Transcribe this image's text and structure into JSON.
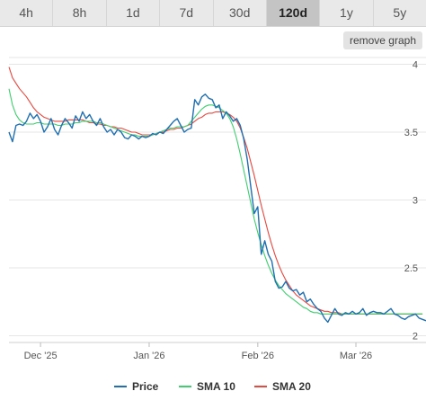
{
  "range_buttons": [
    {
      "label": "4h"
    },
    {
      "label": "8h"
    },
    {
      "label": "1d"
    },
    {
      "label": "7d"
    },
    {
      "label": "30d"
    },
    {
      "label": "120d",
      "active": true
    },
    {
      "label": "1y"
    },
    {
      "label": "5y"
    }
  ],
  "remove_graph_label": "remove graph",
  "colors": {
    "price": "#1f6fb2",
    "sma10": "#3fcf6f",
    "sma20": "#e8483f",
    "grid": "#e6e6e6"
  },
  "chart_data": {
    "type": "line",
    "x_ticks": [
      {
        "label": "Dec '25",
        "x": 5
      },
      {
        "label": "Jan '26",
        "x": 36
      },
      {
        "label": "Feb '26",
        "x": 67
      },
      {
        "label": "Mar '26",
        "x": 95
      }
    ],
    "xlim": [
      -4,
      115
    ],
    "y_ticks": [
      "2",
      "2.5",
      "3",
      "3.5",
      "4"
    ],
    "ylim": [
      1.95,
      4.05
    ],
    "series": [
      {
        "name": "Price",
        "key": "price",
        "x_start": -4,
        "values": [
          3.5,
          3.43,
          3.55,
          3.56,
          3.55,
          3.58,
          3.64,
          3.6,
          3.63,
          3.58,
          3.5,
          3.54,
          3.6,
          3.52,
          3.48,
          3.55,
          3.6,
          3.57,
          3.53,
          3.62,
          3.58,
          3.65,
          3.6,
          3.63,
          3.58,
          3.55,
          3.6,
          3.54,
          3.5,
          3.52,
          3.48,
          3.52,
          3.5,
          3.46,
          3.45,
          3.48,
          3.47,
          3.45,
          3.47,
          3.46,
          3.47,
          3.49,
          3.48,
          3.5,
          3.49,
          3.52,
          3.55,
          3.58,
          3.6,
          3.55,
          3.5,
          3.52,
          3.53,
          3.74,
          3.7,
          3.76,
          3.78,
          3.75,
          3.74,
          3.68,
          3.7,
          3.6,
          3.65,
          3.62,
          3.58,
          3.6,
          3.55,
          3.45,
          3.3,
          3.1,
          2.9,
          2.95,
          2.6,
          2.7,
          2.6,
          2.55,
          2.4,
          2.35,
          2.36,
          2.4,
          2.35,
          2.33,
          2.34,
          2.3,
          2.32,
          2.25,
          2.27,
          2.23,
          2.2,
          2.18,
          2.13,
          2.1,
          2.15,
          2.2,
          2.16,
          2.15,
          2.17,
          2.16,
          2.18,
          2.16,
          2.17,
          2.2,
          2.15,
          2.17,
          2.18,
          2.17,
          2.17,
          2.16,
          2.18,
          2.2,
          2.16,
          2.15,
          2.13,
          2.12,
          2.14,
          2.15,
          2.16,
          2.13,
          2.12,
          2.11
        ]
      },
      {
        "name": "SMA 10",
        "key": "sma10",
        "x_start": -4,
        "values": [
          3.82,
          3.7,
          3.63,
          3.59,
          3.57,
          3.56,
          3.56,
          3.56,
          3.57,
          3.57,
          3.56,
          3.56,
          3.56,
          3.56,
          3.55,
          3.55,
          3.56,
          3.56,
          3.56,
          3.57,
          3.57,
          3.58,
          3.58,
          3.58,
          3.58,
          3.57,
          3.57,
          3.56,
          3.55,
          3.54,
          3.53,
          3.52,
          3.51,
          3.5,
          3.49,
          3.48,
          3.48,
          3.47,
          3.47,
          3.47,
          3.47,
          3.48,
          3.49,
          3.5,
          3.51,
          3.52,
          3.53,
          3.53,
          3.54,
          3.54,
          3.54,
          3.55,
          3.58,
          3.61,
          3.64,
          3.67,
          3.69,
          3.7,
          3.7,
          3.69,
          3.68,
          3.66,
          3.64,
          3.6,
          3.54,
          3.45,
          3.34,
          3.22,
          3.1,
          2.98,
          2.86,
          2.76,
          2.67,
          2.59,
          2.52,
          2.46,
          2.41,
          2.37,
          2.34,
          2.31,
          2.29,
          2.27,
          2.25,
          2.23,
          2.21,
          2.2,
          2.18,
          2.17,
          2.17,
          2.16,
          2.16,
          2.16,
          2.16,
          2.16,
          2.16,
          2.16,
          2.16,
          2.16,
          2.16,
          2.16,
          2.16,
          2.16,
          2.16,
          2.16,
          2.16,
          2.16,
          2.16,
          2.16,
          2.16,
          2.16,
          2.16,
          2.16,
          2.16,
          2.16,
          2.16,
          2.16,
          2.16,
          2.16,
          2.16
        ]
      },
      {
        "name": "SMA 20",
        "key": "sma20",
        "x_start": -4,
        "values": [
          3.98,
          3.9,
          3.86,
          3.82,
          3.79,
          3.76,
          3.72,
          3.68,
          3.65,
          3.63,
          3.61,
          3.6,
          3.59,
          3.58,
          3.58,
          3.58,
          3.58,
          3.59,
          3.59,
          3.59,
          3.59,
          3.59,
          3.58,
          3.57,
          3.57,
          3.56,
          3.56,
          3.55,
          3.55,
          3.54,
          3.54,
          3.53,
          3.53,
          3.52,
          3.51,
          3.5,
          3.5,
          3.49,
          3.48,
          3.48,
          3.48,
          3.48,
          3.49,
          3.5,
          3.5,
          3.51,
          3.52,
          3.52,
          3.53,
          3.53,
          3.54,
          3.55,
          3.56,
          3.58,
          3.6,
          3.61,
          3.63,
          3.64,
          3.64,
          3.65,
          3.65,
          3.65,
          3.64,
          3.63,
          3.61,
          3.58,
          3.53,
          3.46,
          3.38,
          3.28,
          3.18,
          3.07,
          2.96,
          2.86,
          2.76,
          2.67,
          2.59,
          2.52,
          2.46,
          2.41,
          2.37,
          2.33,
          2.3,
          2.28,
          2.26,
          2.24,
          2.22,
          2.21,
          2.2,
          2.19,
          2.18,
          2.18,
          2.17,
          2.17,
          2.17,
          2.16,
          2.16,
          2.16,
          2.16,
          2.16,
          2.16,
          2.16,
          2.16,
          2.16,
          2.16,
          2.16,
          2.16,
          2.16,
          2.16,
          2.16,
          2.16,
          2.16,
          2.16,
          2.16,
          2.16,
          2.16,
          2.16,
          2.16,
          2.16
        ]
      }
    ],
    "legend": [
      {
        "name": "Price",
        "key": "price"
      },
      {
        "name": "SMA 10",
        "key": "sma10"
      },
      {
        "name": "SMA 20",
        "key": "sma20"
      }
    ],
    "grid": true,
    "legend_position": "bottom"
  }
}
